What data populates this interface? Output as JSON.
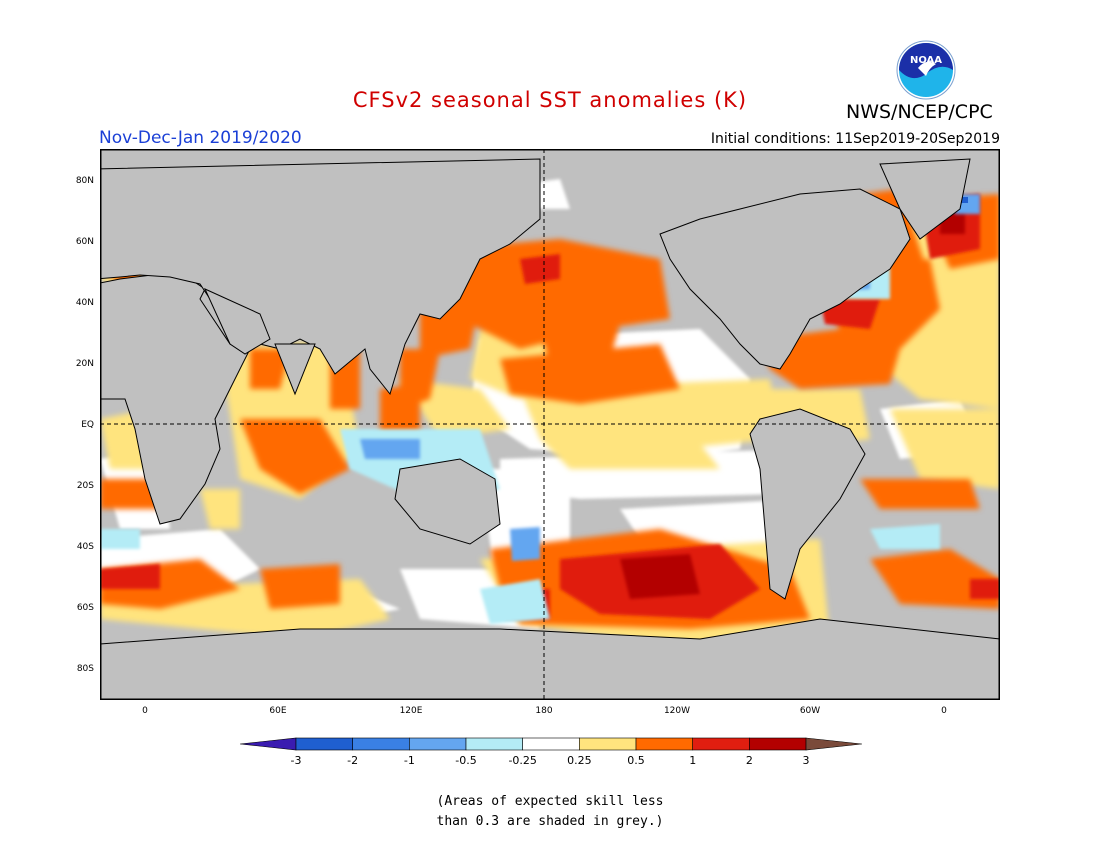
{
  "header": {
    "title": "CFSv2 seasonal SST anomalies (K)",
    "period": "Nov-Dec-Jan 2019/2020",
    "initial_conditions": "Initial conditions: 11Sep2019-20Sep2019",
    "agency": "NWS/NCEP/CPC",
    "logo_text": "NOAA"
  },
  "map": {
    "lat_labels": [
      "80N",
      "60N",
      "40N",
      "20N",
      "EQ",
      "20S",
      "40S",
      "60S",
      "80S"
    ],
    "lon_labels": [
      "0",
      "60E",
      "120E",
      "180",
      "120W",
      "60W",
      "0"
    ],
    "colors": {
      "land": "#c0c0c0",
      "ocean_neutral": "#ffffff",
      "low_skill": "#c0c0c0"
    }
  },
  "colorbar": {
    "labels": [
      "-3",
      "-2",
      "-1",
      "-0.5",
      "-0.25",
      "0.25",
      "0.5",
      "1",
      "2",
      "3"
    ],
    "colors": [
      "#3a1bb0",
      "#1f5fd0",
      "#3a80e4",
      "#64a6f0",
      "#b4ecf6",
      "#ffffff",
      "#ffe47e",
      "#ff6a00",
      "#e01e10",
      "#b30000",
      "#7a4a3a"
    ]
  },
  "note": {
    "line1": "(Areas of expected skill less",
    "line2": "than 0.3 are shaded in grey.)"
  }
}
